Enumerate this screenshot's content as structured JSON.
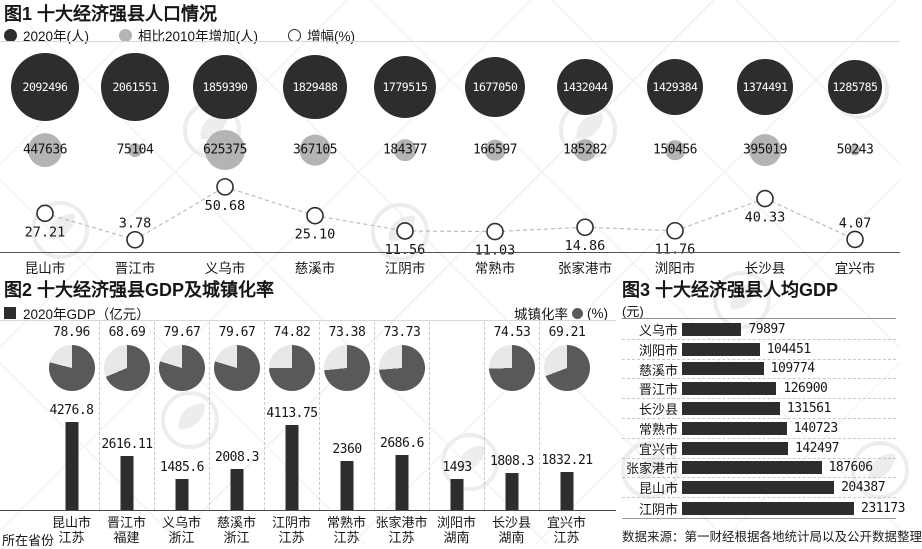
{
  "colors": {
    "dark": "#2d2d2f",
    "gray_bubble": "#b4b4b4",
    "pie_dark": "#59595b",
    "pie_light": "#e8e8e6",
    "dashed": "#c9c9c9",
    "axis": "#4a4a4a"
  },
  "chart1": {
    "title": "图1 十大经济强县人口情况",
    "legend": [
      {
        "label": "2020年(人)",
        "marker": "filled-dark-circle"
      },
      {
        "label": "相比2010年增加(人)",
        "marker": "filled-gray-circle"
      },
      {
        "label": "增幅(%)",
        "marker": "open-circle"
      }
    ]
  },
  "chart2": {
    "title": "图2 十大经济强县GDP及城镇化率",
    "legend_gdp": "2020年GDP（亿元）",
    "legend_urban_label": "城镇化率",
    "legend_urban_unit": "(%)",
    "province_caption": "所在省份"
  },
  "chart3": {
    "title": "图3 十大经济强县人均GDP",
    "unit": "(元)",
    "source_note": "数据来源：第一财经根据各地统计局以及公开数据整理"
  },
  "chart_data": [
    {
      "type": "bubble-line",
      "title": "图1 十大经济强县人口情况",
      "categories": [
        "昆山市",
        "晋江市",
        "义乌市",
        "慈溪市",
        "江阴市",
        "常熟市",
        "张家港市",
        "浏阳市",
        "长沙县",
        "宜兴市"
      ],
      "legend_position": "top",
      "series": [
        {
          "name": "2020年(人)",
          "type": "bubble",
          "values": [
            2092496,
            2061551,
            1859390,
            1829488,
            1779515,
            1677050,
            1432044,
            1429384,
            1374491,
            1285785
          ],
          "labels": [
            "2092496",
            "2061551",
            "1859390",
            "1829488",
            "1779515",
            "1677050",
            "1432044",
            "1429384",
            "1374491",
            "1285785"
          ]
        },
        {
          "name": "相比2010年增加(人)",
          "type": "bubble",
          "values": [
            447636,
            75104,
            625375,
            367105,
            184377,
            166597,
            185282,
            150456,
            395019,
            50243
          ],
          "labels": [
            "447636",
            "75104",
            "625375",
            "367105",
            "184377",
            "166597",
            "185282",
            "150456",
            "395019",
            "50243"
          ]
        },
        {
          "name": "增幅(%)",
          "type": "line",
          "values": [
            27.21,
            3.78,
            50.68,
            25.1,
            11.56,
            11.03,
            14.86,
            11.76,
            40.33,
            4.07
          ],
          "labels": [
            "27.21",
            "3.78",
            "50.68",
            "25.10",
            "11.56",
            "11.03",
            "14.86",
            "11.76",
            "40.33",
            "4.07"
          ],
          "label_above": [
            false,
            true,
            false,
            false,
            false,
            false,
            false,
            false,
            false,
            true
          ],
          "ylim": [
            0,
            55
          ]
        }
      ]
    },
    {
      "type": "bar+pie",
      "title": "图2 十大经济强县GDP及城镇化率",
      "categories": [
        "昆山市",
        "晋江市",
        "义乌市",
        "慈溪市",
        "江阴市",
        "常熟市",
        "张家港市",
        "浏阳市",
        "长沙县",
        "宜兴市"
      ],
      "provinces": [
        "江苏",
        "福建",
        "浙江",
        "浙江",
        "江苏",
        "江苏",
        "江苏",
        "湖南",
        "湖南",
        "江苏"
      ],
      "series": [
        {
          "name": "2020年GDP（亿元）",
          "type": "bar",
          "values": [
            4276.8,
            2616.11,
            1485.6,
            2008.3,
            4113.75,
            2360,
            2686.6,
            1493,
            1808.3,
            1832.21
          ],
          "labels": [
            "4276.8",
            "2616.11",
            "1485.6",
            "2008.3",
            "4113.75",
            "2360",
            "2686.6",
            "1493",
            "1808.3",
            "1832.21"
          ]
        },
        {
          "name": "城镇化率(%)",
          "type": "pie",
          "values": [
            78.96,
            68.69,
            79.67,
            79.67,
            74.82,
            73.38,
            73.73,
            null,
            74.53,
            69.21
          ],
          "labels": [
            "78.96",
            "68.69",
            "79.67",
            "79.67",
            "74.82",
            "73.38",
            "73.73",
            null,
            "74.53",
            "69.21"
          ]
        }
      ]
    },
    {
      "type": "bar-horizontal",
      "title": "图3 十大经济强县人均GDP",
      "unit": "(元)",
      "categories": [
        "义乌市",
        "浏阳市",
        "慈溪市",
        "晋江市",
        "长沙县",
        "常熟市",
        "宜兴市",
        "张家港市",
        "昆山市",
        "江阴市"
      ],
      "values": [
        79897,
        104451,
        109774,
        126900,
        131561,
        140723,
        142497,
        187606,
        204387,
        231173
      ],
      "labels": [
        "79897",
        "104451",
        "109774",
        "126900",
        "131561",
        "140723",
        "142497",
        "187606",
        "204387",
        "231173"
      ],
      "xlim": [
        0,
        240000
      ]
    }
  ]
}
